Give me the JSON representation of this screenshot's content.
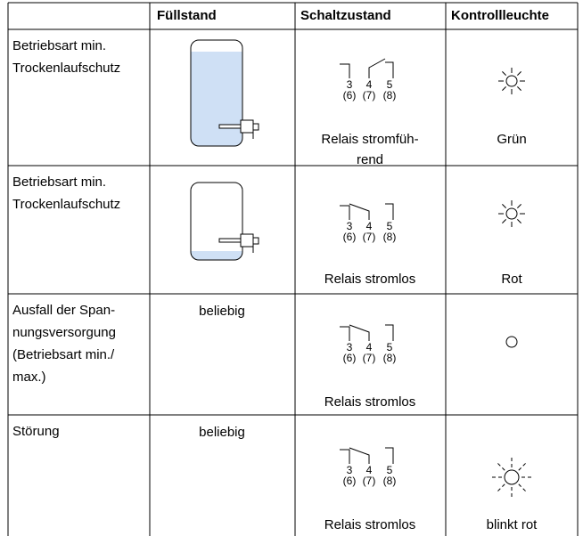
{
  "header": {
    "columns": [
      "Füllstand",
      "Schaltzustand",
      "Kontrollleuchte"
    ]
  },
  "terminals": [
    "3",
    "4",
    "5"
  ],
  "terminals_alt": [
    "(6)",
    "(7)",
    "(8)"
  ],
  "rows": [
    {
      "mode": [
        "Betriebsart min.",
        "Trockenlaufschutz"
      ],
      "relay": [
        "Relais stromfüh-",
        "rend"
      ],
      "lamp": "Grün"
    },
    {
      "mode": [
        "Betriebsart min.",
        "Trockenlaufschutz"
      ],
      "relay": [
        "Relais stromlos"
      ],
      "lamp": "Rot"
    },
    {
      "mode": [
        "Ausfall der Span-",
        "nungsversorgung",
        "(Betriebsart min./",
        "max.)"
      ],
      "level": "beliebig",
      "relay": [
        "Relais stromlos"
      ]
    },
    {
      "mode": [
        "Störung"
      ],
      "level": "beliebig",
      "relay": [
        "Relais stromlos"
      ],
      "lamp": "blinkt rot"
    }
  ]
}
